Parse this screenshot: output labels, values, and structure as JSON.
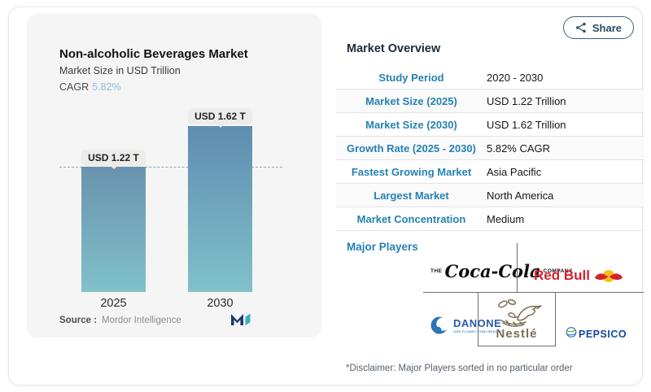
{
  "share": {
    "label": "Share",
    "icon": "share-nodes-icon"
  },
  "chart_panel": {
    "title": "Non-alcoholic Beverages Market",
    "subtitle": "Market Size in USD Trillion",
    "cagr_label": "CAGR",
    "cagr_value": "5.82%",
    "source_label": "Source :",
    "source_value": "Mordor Intelligence",
    "source_logo": "mordor-intelligence-logo"
  },
  "chart_data": {
    "type": "bar",
    "categories": [
      "2025",
      "2030"
    ],
    "values": [
      1.22,
      1.62
    ],
    "value_labels": [
      "USD 1.22 T",
      "USD 1.62 T"
    ],
    "title": "Non-alcoholic Beverages Market",
    "subtitle": "Market Size in USD Trillion",
    "unit": "USD Trillion",
    "cagr": "5.82%",
    "ylim": [
      0,
      1.62
    ],
    "grid": false,
    "dashed_reference_line_at": 1.22,
    "bar_colors": [
      {
        "top": "#6a93ae",
        "bottom": "#80c1ca"
      },
      {
        "top": "#5e8db0",
        "bottom": "#80c1ca"
      }
    ]
  },
  "overview": {
    "title": "Market Overview",
    "rows": [
      {
        "label": "Study Period",
        "value": "2020 - 2030"
      },
      {
        "label": "Market Size (2025)",
        "value": "USD 1.22 Trillion"
      },
      {
        "label": "Market Size (2030)",
        "value": "USD 1.62 Trillion"
      },
      {
        "label": "Growth Rate (2025 - 2030)",
        "value": "5.82% CAGR"
      },
      {
        "label": "Fastest Growing Market",
        "value": "Asia Pacific"
      },
      {
        "label": "Largest Market",
        "value": "North America"
      },
      {
        "label": "Market Concentration",
        "value": "Medium"
      }
    ]
  },
  "major_players": {
    "title": "Major Players",
    "players": [
      "The Coca-Cola Company",
      "Red Bull",
      "Danone",
      "Nestlé",
      "PepsiCo"
    ],
    "logos": {
      "coca_cola": {
        "pre": "THE",
        "script": "Coca-Cola",
        "post": "COMPANY"
      },
      "red_bull": {
        "text": "Red Bull"
      },
      "danone": {
        "text": "DANONE",
        "tagline": "ONE PLANET. ONE HEALTH"
      },
      "nestle": {
        "text": "Nestlé"
      },
      "pepsico": {
        "text": "PEPSICO"
      }
    },
    "disclaimer": "*Disclaimer: Major Players sorted in no particular order"
  },
  "colors": {
    "accent_blue": "#2581b5",
    "cagr_blue": "#94bcd4",
    "panel_bg": "#f5f5f6",
    "dashed_line": "#8da4b1",
    "redbull_red": "#d4232e",
    "nestle_brown": "#7d6e54",
    "danone_blue": "#2a5ba8",
    "pepsico_blue": "#14489f",
    "share_border": "#3f6076"
  }
}
